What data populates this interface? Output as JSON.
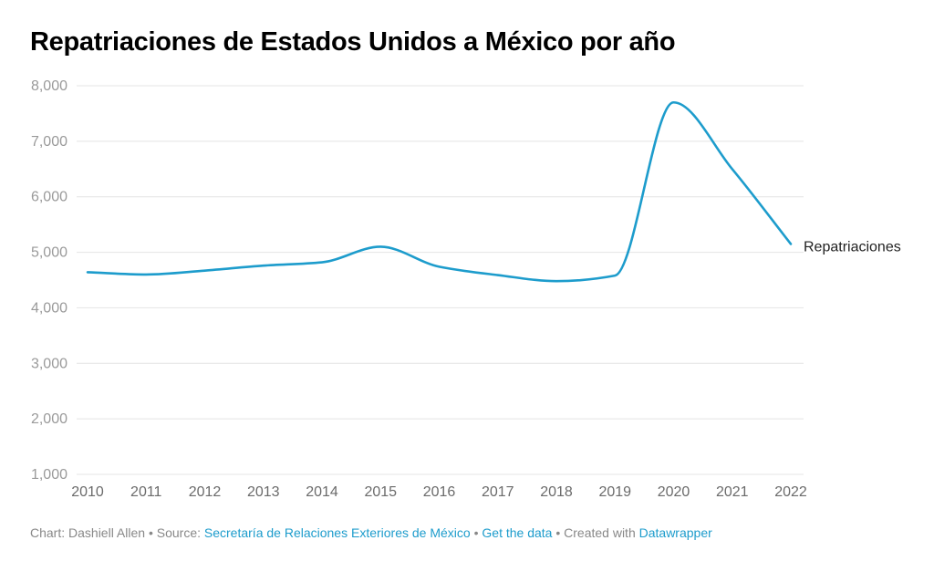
{
  "chart_data": {
    "type": "line",
    "title": "Repatriaciones de Estados Unidos a México por año",
    "xlabel": "",
    "ylabel": "",
    "x": [
      2010,
      2011,
      2012,
      2013,
      2014,
      2015,
      2016,
      2017,
      2018,
      2019,
      2020,
      2021,
      2022
    ],
    "x_tick_labels": [
      "2010",
      "2011",
      "2012",
      "2013",
      "2014",
      "2015",
      "2016",
      "2017",
      "2018",
      "2019",
      "2020",
      "2021",
      "2022"
    ],
    "y_tick_values": [
      1000,
      2000,
      3000,
      4000,
      5000,
      6000,
      7000,
      8000
    ],
    "y_tick_labels": [
      "1,000",
      "2,000",
      "3,000",
      "4,000",
      "5,000",
      "6,000",
      "7,000",
      "8,000"
    ],
    "ylim": [
      1000,
      8000
    ],
    "grid": true,
    "series": [
      {
        "name": "Repatriaciones",
        "color": "#1d9ccc",
        "values": [
          4640,
          4600,
          4670,
          4760,
          4820,
          5100,
          4740,
          4590,
          4480,
          4580,
          7700,
          6500,
          5150
        ]
      }
    ],
    "legend": "inline-end-label"
  },
  "footer": {
    "chart_prefix": "Chart: Dashiell Allen",
    "source_prefix": "Source: ",
    "source_link": "Secretaría de Relaciones Exteriores de México",
    "get_data": "Get the data",
    "created_with": "Created with ",
    "datawrapper": "Datawrapper",
    "separator": " • "
  }
}
